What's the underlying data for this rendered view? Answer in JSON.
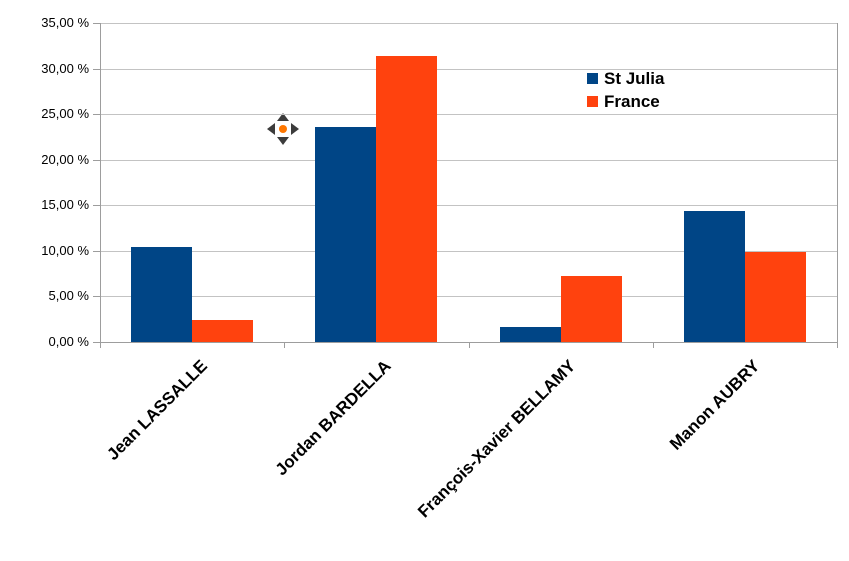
{
  "chart_data": {
    "type": "bar",
    "categories": [
      "Jean LASSALLE",
      "Jordan BARDELLA",
      "François-Xavier BELLAMY",
      "Manon AUBRY"
    ],
    "series": [
      {
        "name": "St Julia",
        "color": "#004586",
        "values": [
          10.4,
          23.6,
          1.7,
          14.4
        ]
      },
      {
        "name": "France",
        "color": "#FF420E",
        "values": [
          2.4,
          31.4,
          7.2,
          9.9
        ]
      }
    ],
    "title": "",
    "xlabel": "",
    "ylabel": "",
    "ylim": [
      0,
      35
    ],
    "ytick_step": 5,
    "ytick_labels": [
      "0,00 %",
      "5,00 %",
      "10,00 %",
      "15,00 %",
      "20,00 %",
      "25,00 %",
      "30,00 %",
      "35,00 %"
    ],
    "grid": true,
    "legend_position": "inside-top-right"
  },
  "colors": {
    "background": "#ffffff",
    "gridline": "#c3c3c3",
    "axis": "#9d9d9d",
    "text": "#000000",
    "cursor_arrow": "#3c3c3c",
    "cursor_dot": "#ff7700"
  }
}
